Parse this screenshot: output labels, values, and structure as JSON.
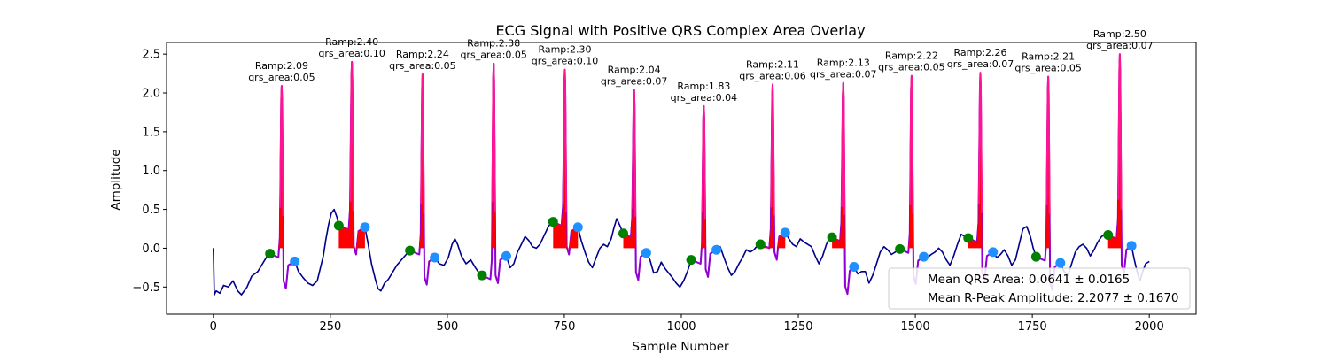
{
  "chart_data": {
    "type": "line",
    "title": "ECG Signal with Positive QRS Complex Area Overlay",
    "xlabel": "Sample Number",
    "ylabel": "Amplitude",
    "xlim": [
      -100,
      2100
    ],
    "ylim": [
      -0.85,
      2.65
    ],
    "xticks": [
      0,
      250,
      500,
      750,
      1000,
      1250,
      1500,
      1750,
      2000
    ],
    "yticks": [
      -0.5,
      0.0,
      0.5,
      1.0,
      1.5,
      2.0,
      2.5
    ],
    "xtick_labels": [
      "0",
      "250",
      "500",
      "750",
      "1000",
      "1250",
      "1500",
      "1750",
      "2000"
    ],
    "ytick_labels": [
      "−0.5",
      "0.0",
      "0.5",
      "1.0",
      "1.5",
      "2.0",
      "2.5"
    ],
    "grid": false,
    "signal_length": 2000,
    "colors": {
      "signal": "#00008b",
      "qrs_segment": "#9400d3",
      "qrs_area": "#ff0000",
      "r_peak_highlight": "#ff1493",
      "q_marker": "#008000",
      "s_marker": "#1e90ff"
    },
    "beats": [
      {
        "q": 121,
        "r": 146,
        "s": 174,
        "q_amp": -0.07,
        "r_amp": 2.09,
        "s_amp": -0.17,
        "qrs_area": 0.05,
        "ann_r": "Ramp:2.09",
        "ann_a": "qrs_area:0.05"
      },
      {
        "q": 268,
        "r": 296,
        "s": 324,
        "q_amp": 0.29,
        "r_amp": 2.4,
        "s_amp": 0.27,
        "qrs_area": 0.1,
        "ann_r": "Ramp:2.40",
        "ann_a": "qrs_area:0.10"
      },
      {
        "q": 420,
        "r": 447,
        "s": 473,
        "q_amp": -0.03,
        "r_amp": 2.24,
        "s_amp": -0.12,
        "qrs_area": 0.05,
        "ann_r": "Ramp:2.24",
        "ann_a": "qrs_area:0.05"
      },
      {
        "q": 574,
        "r": 599,
        "s": 626,
        "q_amp": -0.35,
        "r_amp": 2.38,
        "s_amp": -0.1,
        "qrs_area": 0.05,
        "ann_r": "Ramp:2.38",
        "ann_a": "qrs_area:0.05"
      },
      {
        "q": 726,
        "r": 751,
        "s": 779,
        "q_amp": 0.34,
        "r_amp": 2.3,
        "s_amp": 0.27,
        "qrs_area": 0.1,
        "ann_r": "Ramp:2.30",
        "ann_a": "qrs_area:0.10"
      },
      {
        "q": 876,
        "r": 899,
        "s": 925,
        "q_amp": 0.19,
        "r_amp": 2.04,
        "s_amp": -0.06,
        "qrs_area": 0.07,
        "ann_r": "Ramp:2.04",
        "ann_a": "qrs_area:0.07"
      },
      {
        "q": 1021,
        "r": 1048,
        "s": 1075,
        "q_amp": -0.15,
        "r_amp": 1.83,
        "s_amp": -0.02,
        "qrs_area": 0.04,
        "ann_r": "Ramp:1.83",
        "ann_a": "qrs_area:0.04"
      },
      {
        "q": 1169,
        "r": 1195,
        "s": 1222,
        "q_amp": 0.05,
        "r_amp": 2.11,
        "s_amp": 0.2,
        "qrs_area": 0.06,
        "ann_r": "Ramp:2.11",
        "ann_a": "qrs_area:0.06"
      },
      {
        "q": 1322,
        "r": 1346,
        "s": 1369,
        "q_amp": 0.14,
        "r_amp": 2.13,
        "s_amp": -0.24,
        "qrs_area": 0.07,
        "ann_r": "Ramp:2.13",
        "ann_a": "qrs_area:0.07"
      },
      {
        "q": 1467,
        "r": 1492,
        "s": 1518,
        "q_amp": -0.01,
        "r_amp": 2.22,
        "s_amp": -0.11,
        "qrs_area": 0.05,
        "ann_r": "Ramp:2.22",
        "ann_a": "qrs_area:0.05"
      },
      {
        "q": 1613,
        "r": 1639,
        "s": 1666,
        "q_amp": 0.13,
        "r_amp": 2.26,
        "s_amp": -0.05,
        "qrs_area": 0.07,
        "ann_r": "Ramp:2.26",
        "ann_a": "qrs_area:0.07"
      },
      {
        "q": 1758,
        "r": 1784,
        "s": 1810,
        "q_amp": -0.11,
        "r_amp": 2.21,
        "s_amp": -0.19,
        "qrs_area": 0.05,
        "ann_r": "Ramp:2.21",
        "ann_a": "qrs_area:0.05"
      },
      {
        "q": 1912,
        "r": 1937,
        "s": 1962,
        "q_amp": 0.17,
        "r_amp": 2.5,
        "s_amp": 0.03,
        "qrs_area": 0.07,
        "ann_r": "Ramp:2.50",
        "ann_a": "qrs_area:0.07"
      }
    ],
    "baseline": [
      [
        0,
        0.0
      ],
      [
        2,
        -0.6
      ],
      [
        6,
        -0.55
      ],
      [
        14,
        -0.58
      ],
      [
        22,
        -0.48
      ],
      [
        32,
        -0.5
      ],
      [
        42,
        -0.42
      ],
      [
        52,
        -0.55
      ],
      [
        60,
        -0.6
      ],
      [
        72,
        -0.5
      ],
      [
        82,
        -0.36
      ],
      [
        95,
        -0.3
      ],
      [
        105,
        -0.2
      ],
      [
        115,
        -0.1
      ],
      [
        121,
        -0.07
      ],
      [
        174,
        -0.17
      ],
      [
        182,
        -0.3
      ],
      [
        192,
        -0.38
      ],
      [
        202,
        -0.45
      ],
      [
        212,
        -0.48
      ],
      [
        222,
        -0.42
      ],
      [
        235,
        -0.1
      ],
      [
        240,
        0.1
      ],
      [
        246,
        0.3
      ],
      [
        252,
        0.45
      ],
      [
        258,
        0.5
      ],
      [
        264,
        0.4
      ],
      [
        268,
        0.29
      ],
      [
        324,
        0.27
      ],
      [
        330,
        0.08
      ],
      [
        338,
        -0.2
      ],
      [
        346,
        -0.4
      ],
      [
        352,
        -0.52
      ],
      [
        358,
        -0.55
      ],
      [
        366,
        -0.45
      ],
      [
        374,
        -0.4
      ],
      [
        382,
        -0.32
      ],
      [
        392,
        -0.22
      ],
      [
        402,
        -0.15
      ],
      [
        412,
        -0.08
      ],
      [
        420,
        -0.03
      ],
      [
        473,
        -0.12
      ],
      [
        483,
        -0.2
      ],
      [
        493,
        -0.22
      ],
      [
        502,
        -0.12
      ],
      [
        510,
        0.05
      ],
      [
        516,
        0.12
      ],
      [
        522,
        0.05
      ],
      [
        530,
        -0.1
      ],
      [
        540,
        -0.2
      ],
      [
        550,
        -0.15
      ],
      [
        560,
        -0.25
      ],
      [
        568,
        -0.32
      ],
      [
        574,
        -0.35
      ],
      [
        626,
        -0.1
      ],
      [
        634,
        -0.25
      ],
      [
        642,
        -0.2
      ],
      [
        650,
        -0.05
      ],
      [
        658,
        0.05
      ],
      [
        666,
        0.15
      ],
      [
        674,
        0.1
      ],
      [
        682,
        0.02
      ],
      [
        690,
        0.0
      ],
      [
        698,
        0.05
      ],
      [
        708,
        0.18
      ],
      [
        716,
        0.28
      ],
      [
        722,
        0.33
      ],
      [
        726,
        0.34
      ],
      [
        779,
        0.27
      ],
      [
        786,
        0.1
      ],
      [
        794,
        -0.05
      ],
      [
        802,
        -0.18
      ],
      [
        810,
        -0.25
      ],
      [
        818,
        -0.12
      ],
      [
        826,
        0.0
      ],
      [
        834,
        0.05
      ],
      [
        842,
        0.02
      ],
      [
        850,
        0.12
      ],
      [
        856,
        0.26
      ],
      [
        862,
        0.38
      ],
      [
        868,
        0.3
      ],
      [
        876,
        0.19
      ],
      [
        925,
        -0.06
      ],
      [
        933,
        -0.15
      ],
      [
        941,
        -0.32
      ],
      [
        949,
        -0.3
      ],
      [
        957,
        -0.18
      ],
      [
        965,
        -0.26
      ],
      [
        973,
        -0.32
      ],
      [
        981,
        -0.38
      ],
      [
        989,
        -0.45
      ],
      [
        997,
        -0.5
      ],
      [
        1005,
        -0.42
      ],
      [
        1013,
        -0.3
      ],
      [
        1021,
        -0.15
      ],
      [
        1075,
        -0.02
      ],
      [
        1083,
        0.02
      ],
      [
        1091,
        -0.12
      ],
      [
        1099,
        -0.25
      ],
      [
        1107,
        -0.35
      ],
      [
        1115,
        -0.3
      ],
      [
        1123,
        -0.2
      ],
      [
        1131,
        -0.12
      ],
      [
        1139,
        -0.02
      ],
      [
        1147,
        -0.05
      ],
      [
        1155,
        -0.02
      ],
      [
        1162,
        0.03
      ],
      [
        1169,
        0.05
      ],
      [
        1222,
        0.2
      ],
      [
        1230,
        0.12
      ],
      [
        1238,
        0.05
      ],
      [
        1246,
        0.02
      ],
      [
        1254,
        0.12
      ],
      [
        1262,
        0.08
      ],
      [
        1270,
        0.05
      ],
      [
        1278,
        0.02
      ],
      [
        1286,
        -0.1
      ],
      [
        1294,
        -0.2
      ],
      [
        1302,
        -0.1
      ],
      [
        1310,
        0.05
      ],
      [
        1316,
        0.12
      ],
      [
        1322,
        0.14
      ],
      [
        1369,
        -0.24
      ],
      [
        1377,
        -0.33
      ],
      [
        1385,
        -0.3
      ],
      [
        1393,
        -0.3
      ],
      [
        1401,
        -0.45
      ],
      [
        1409,
        -0.35
      ],
      [
        1417,
        -0.2
      ],
      [
        1425,
        -0.05
      ],
      [
        1433,
        0.02
      ],
      [
        1441,
        -0.02
      ],
      [
        1449,
        -0.08
      ],
      [
        1457,
        -0.05
      ],
      [
        1467,
        -0.01
      ],
      [
        1518,
        -0.11
      ],
      [
        1526,
        -0.12
      ],
      [
        1534,
        -0.08
      ],
      [
        1542,
        -0.05
      ],
      [
        1550,
        0.0
      ],
      [
        1558,
        -0.05
      ],
      [
        1566,
        -0.15
      ],
      [
        1574,
        -0.22
      ],
      [
        1582,
        -0.1
      ],
      [
        1590,
        0.05
      ],
      [
        1598,
        0.18
      ],
      [
        1606,
        0.15
      ],
      [
        1613,
        0.13
      ],
      [
        1666,
        -0.05
      ],
      [
        1674,
        -0.12
      ],
      [
        1682,
        -0.08
      ],
      [
        1690,
        -0.02
      ],
      [
        1698,
        -0.1
      ],
      [
        1706,
        -0.22
      ],
      [
        1714,
        -0.15
      ],
      [
        1722,
        0.05
      ],
      [
        1730,
        0.25
      ],
      [
        1738,
        0.28
      ],
      [
        1746,
        0.15
      ],
      [
        1752,
        0.0
      ],
      [
        1758,
        -0.11
      ],
      [
        1810,
        -0.19
      ],
      [
        1818,
        -0.3
      ],
      [
        1826,
        -0.35
      ],
      [
        1834,
        -0.2
      ],
      [
        1842,
        -0.05
      ],
      [
        1850,
        0.02
      ],
      [
        1858,
        0.05
      ],
      [
        1866,
        0.0
      ],
      [
        1874,
        -0.1
      ],
      [
        1882,
        -0.02
      ],
      [
        1890,
        0.08
      ],
      [
        1898,
        0.15
      ],
      [
        1905,
        0.18
      ],
      [
        1912,
        0.17
      ],
      [
        1962,
        0.03
      ],
      [
        1968,
        -0.15
      ],
      [
        1974,
        -0.3
      ],
      [
        1980,
        -0.42
      ],
      [
        1986,
        -0.3
      ],
      [
        1992,
        -0.2
      ],
      [
        2000,
        -0.17
      ]
    ],
    "legend": {
      "placement": "lower right",
      "entries": [
        "Mean QRS Area: 0.0641 ± 0.0165",
        "Mean R-Peak Amplitude: 2.2077 ± 0.1670"
      ]
    }
  }
}
